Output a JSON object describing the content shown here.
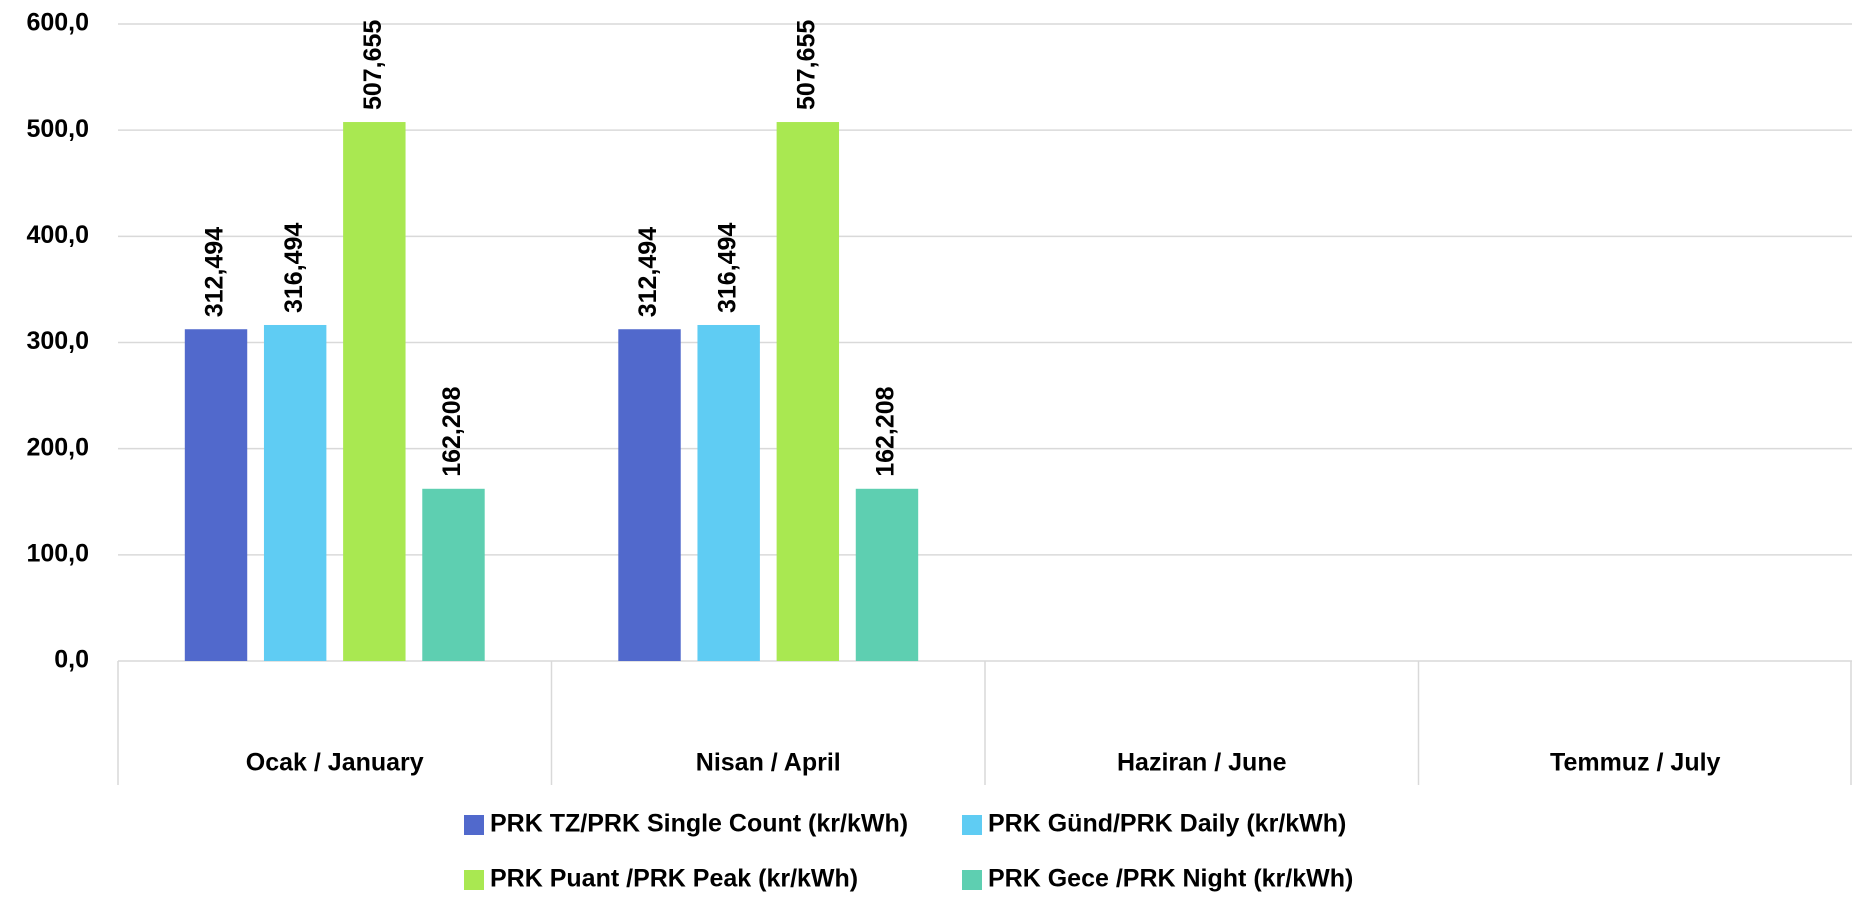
{
  "chart_data": {
    "type": "bar",
    "categories": [
      "Ocak / January",
      "Nisan / April",
      "Haziran / June",
      "Temmuz / July"
    ],
    "series": [
      {
        "name": "PRK TZ/PRK Single Count (kr/kWh)",
        "color": "#5169cc",
        "values": [
          312.494,
          312.494,
          null,
          null
        ],
        "value_labels": [
          "312,494",
          "312,494",
          null,
          null
        ]
      },
      {
        "name": "PRK Günd/PRK Daily (kr/kWh)",
        "color": "#5fccf3",
        "values": [
          316.494,
          316.494,
          null,
          null
        ],
        "value_labels": [
          "316,494",
          "316,494",
          null,
          null
        ]
      },
      {
        "name": "PRK Puant /PRK Peak (kr/kWh)",
        "color": "#a9e851",
        "values": [
          507.655,
          507.655,
          null,
          null
        ],
        "value_labels": [
          "507,655",
          "507,655",
          null,
          null
        ]
      },
      {
        "name": "PRK Gece /PRK Night (kr/kWh)",
        "color": "#5ecfb1",
        "values": [
          162.208,
          162.208,
          null,
          null
        ],
        "value_labels": [
          "162,208",
          "162,208",
          null,
          null
        ]
      }
    ],
    "ylim": [
      0,
      600
    ],
    "yticks": [
      {
        "value": 0,
        "label": "0,0"
      },
      {
        "value": 100,
        "label": "100,0"
      },
      {
        "value": 200,
        "label": "200,0"
      },
      {
        "value": 300,
        "label": "300,0"
      },
      {
        "value": 400,
        "label": "400,0"
      },
      {
        "value": 500,
        "label": "500,0"
      },
      {
        "value": 600,
        "label": "600,0"
      }
    ],
    "grid": true,
    "legend": "bottom"
  }
}
